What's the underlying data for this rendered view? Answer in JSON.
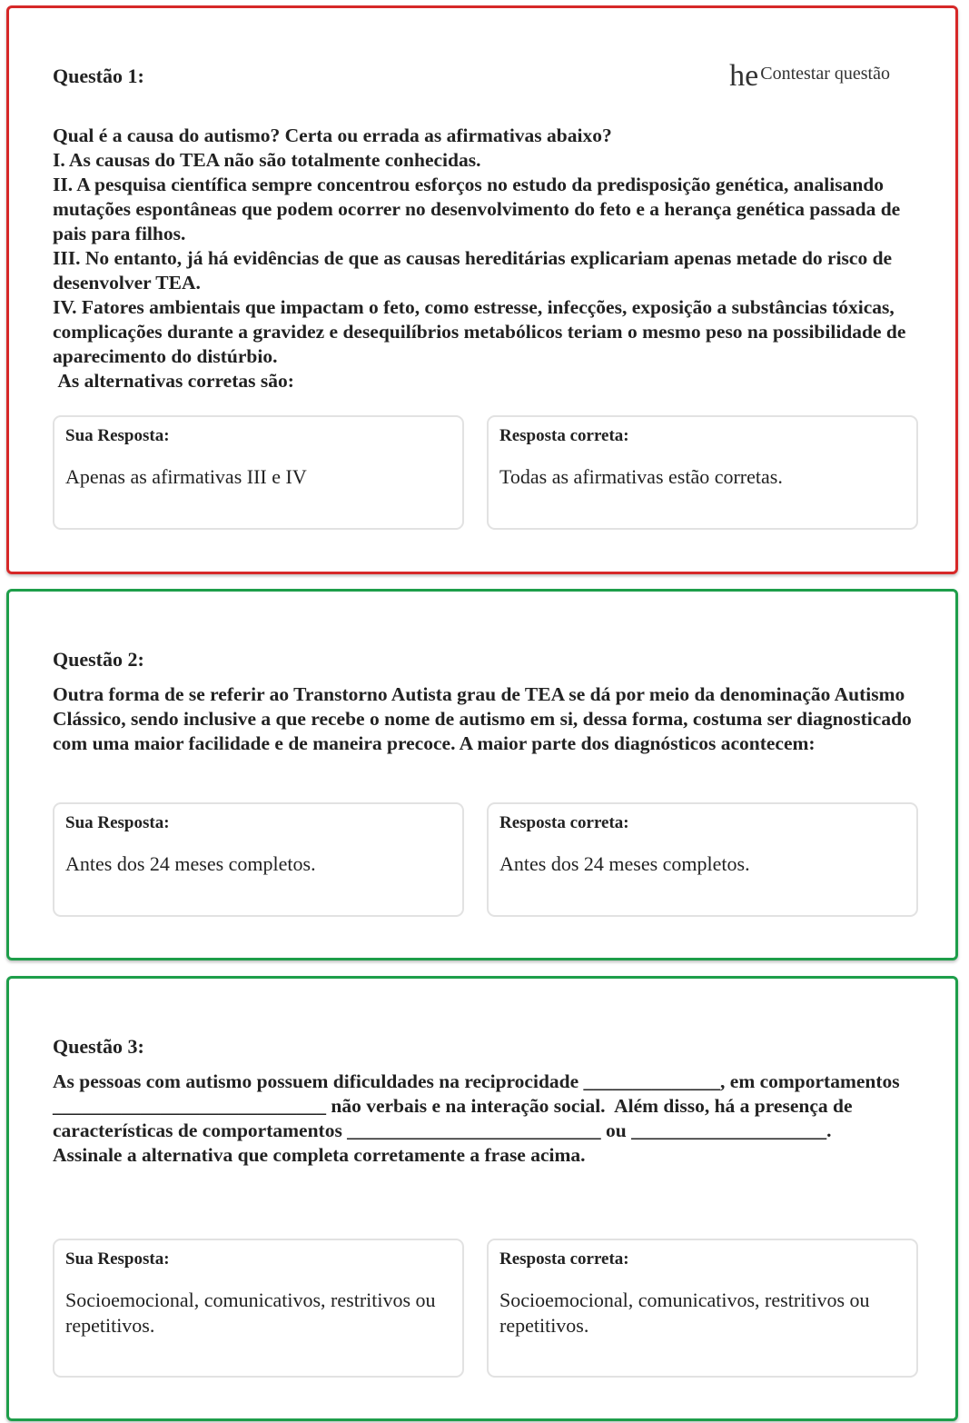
{
  "contest": {
    "prefix": "he",
    "label": "Contestar questão"
  },
  "labels": {
    "yours": "Sua Resposta:",
    "correct": "Resposta correta:"
  },
  "colors": {
    "wrong": "#d62828",
    "right": "#1e9e4a"
  },
  "questions": [
    {
      "title": "Questão 1:",
      "status": "wrong",
      "text": "Qual é a causa do autismo? Certa ou errada as afirmativas abaixo?\nI. As causas do TEA não são totalmente conhecidas.\nII. A pesquisa científica sempre concentrou esforços no estudo da predisposição genética, analisando mutações espontâneas que podem ocorrer no desenvolvimento do feto e a herança genética passada de pais para filhos.\nIII. No entanto, já há evidências de que as causas hereditárias explicariam apenas metade do risco de desenvolver TEA.\nIV. Fatores ambientais que impactam o feto, como estresse, infecções, exposição a substâncias tóxicas, complicações durante a gravidez e desequilíbrios metabólicos teriam o mesmo peso na possibilidade de aparecimento do distúrbio.\n As alternativas corretas são:",
      "your_answer": "Apenas as afirmativas III e IV",
      "correct_answer": "Todas as afirmativas estão corretas."
    },
    {
      "title": "Questão 2:",
      "status": "right",
      "text": "Outra forma de se referir ao Transtorno Autista grau de TEA se dá por meio da denominação Autismo Clássico, sendo inclusive a que recebe o nome de autismo em si, dessa forma, costuma ser diagnosticado com uma maior facilidade e de maneira precoce. A maior parte dos diagnósticos acontecem:",
      "your_answer": "Antes dos 24 meses completos.",
      "correct_answer": "Antes dos 24 meses completos."
    },
    {
      "title": "Questão 3:",
      "status": "right",
      "text": "As pessoas com autismo possuem dificuldades na reciprocidade ______________, em comportamentos ____________________________ não verbais e na interação social.  Além disso, há a presença de características de comportamentos __________________________ ou ____________________.\nAssinale a alternativa que completa corretamente a frase acima.",
      "your_answer": "Socioemocional, comunicativos, restritivos ou repetitivos.",
      "correct_answer": "Socioemocional, comunicativos, restritivos ou repetitivos."
    }
  ]
}
